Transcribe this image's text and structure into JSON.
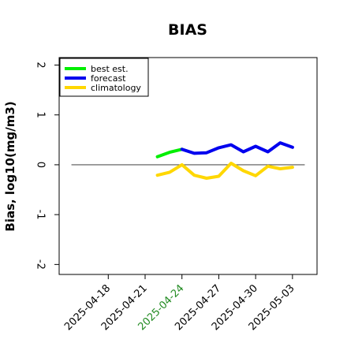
{
  "chart_data": {
    "type": "line",
    "title": "BIAS",
    "xlabel": "",
    "ylabel": "Bias, log10(mg/m3)",
    "ylim": [
      -2.2,
      2.15
    ],
    "xlim": [
      "2025-04-14",
      "2025-05-05"
    ],
    "y_ticks": [
      "2",
      "1",
      "0",
      "-1",
      "-2"
    ],
    "y_tick_values": [
      2,
      1,
      0,
      -1,
      -2
    ],
    "x_ticks": [
      {
        "date": "2025-04-18",
        "label": "2025-04-18",
        "color": "#000000"
      },
      {
        "date": "2025-04-21",
        "label": "2025-04-21",
        "color": "#000000"
      },
      {
        "date": "2025-04-24",
        "label": "2025-04-24",
        "color": "#228b22"
      },
      {
        "date": "2025-04-27",
        "label": "2025-04-27",
        "color": "#000000"
      },
      {
        "date": "2025-04-30",
        "label": "2025-04-30",
        "color": "#000000"
      },
      {
        "date": "2025-05-03",
        "label": "2025-05-03",
        "color": "#000000"
      }
    ],
    "reference_line": {
      "y": 0,
      "from": "2025-04-15",
      "to": "2025-05-04",
      "color": "#555555"
    },
    "grid": false,
    "legend_position": "top-left",
    "series": [
      {
        "name": "best est.",
        "color": "#00ee00",
        "x": [
          "2025-04-22",
          "2025-04-23",
          "2025-04-24"
        ],
        "y": [
          0.16,
          0.25,
          0.31
        ]
      },
      {
        "name": "forecast",
        "color": "#0000ee",
        "x": [
          "2025-04-24",
          "2025-04-25",
          "2025-04-26",
          "2025-04-27",
          "2025-04-28",
          "2025-04-29",
          "2025-04-30",
          "2025-05-01",
          "2025-05-02",
          "2025-05-03"
        ],
        "y": [
          0.31,
          0.23,
          0.24,
          0.34,
          0.4,
          0.26,
          0.37,
          0.26,
          0.44,
          0.35
        ]
      },
      {
        "name": "climatology",
        "color": "#ffd700",
        "x": [
          "2025-04-22",
          "2025-04-23",
          "2025-04-24",
          "2025-04-25",
          "2025-04-26",
          "2025-04-27",
          "2025-04-28",
          "2025-04-29",
          "2025-04-30",
          "2025-05-01",
          "2025-05-02",
          "2025-05-03"
        ],
        "y": [
          -0.21,
          -0.15,
          0.0,
          -0.21,
          -0.27,
          -0.23,
          0.03,
          -0.12,
          -0.22,
          -0.03,
          -0.08,
          -0.05
        ]
      }
    ]
  }
}
